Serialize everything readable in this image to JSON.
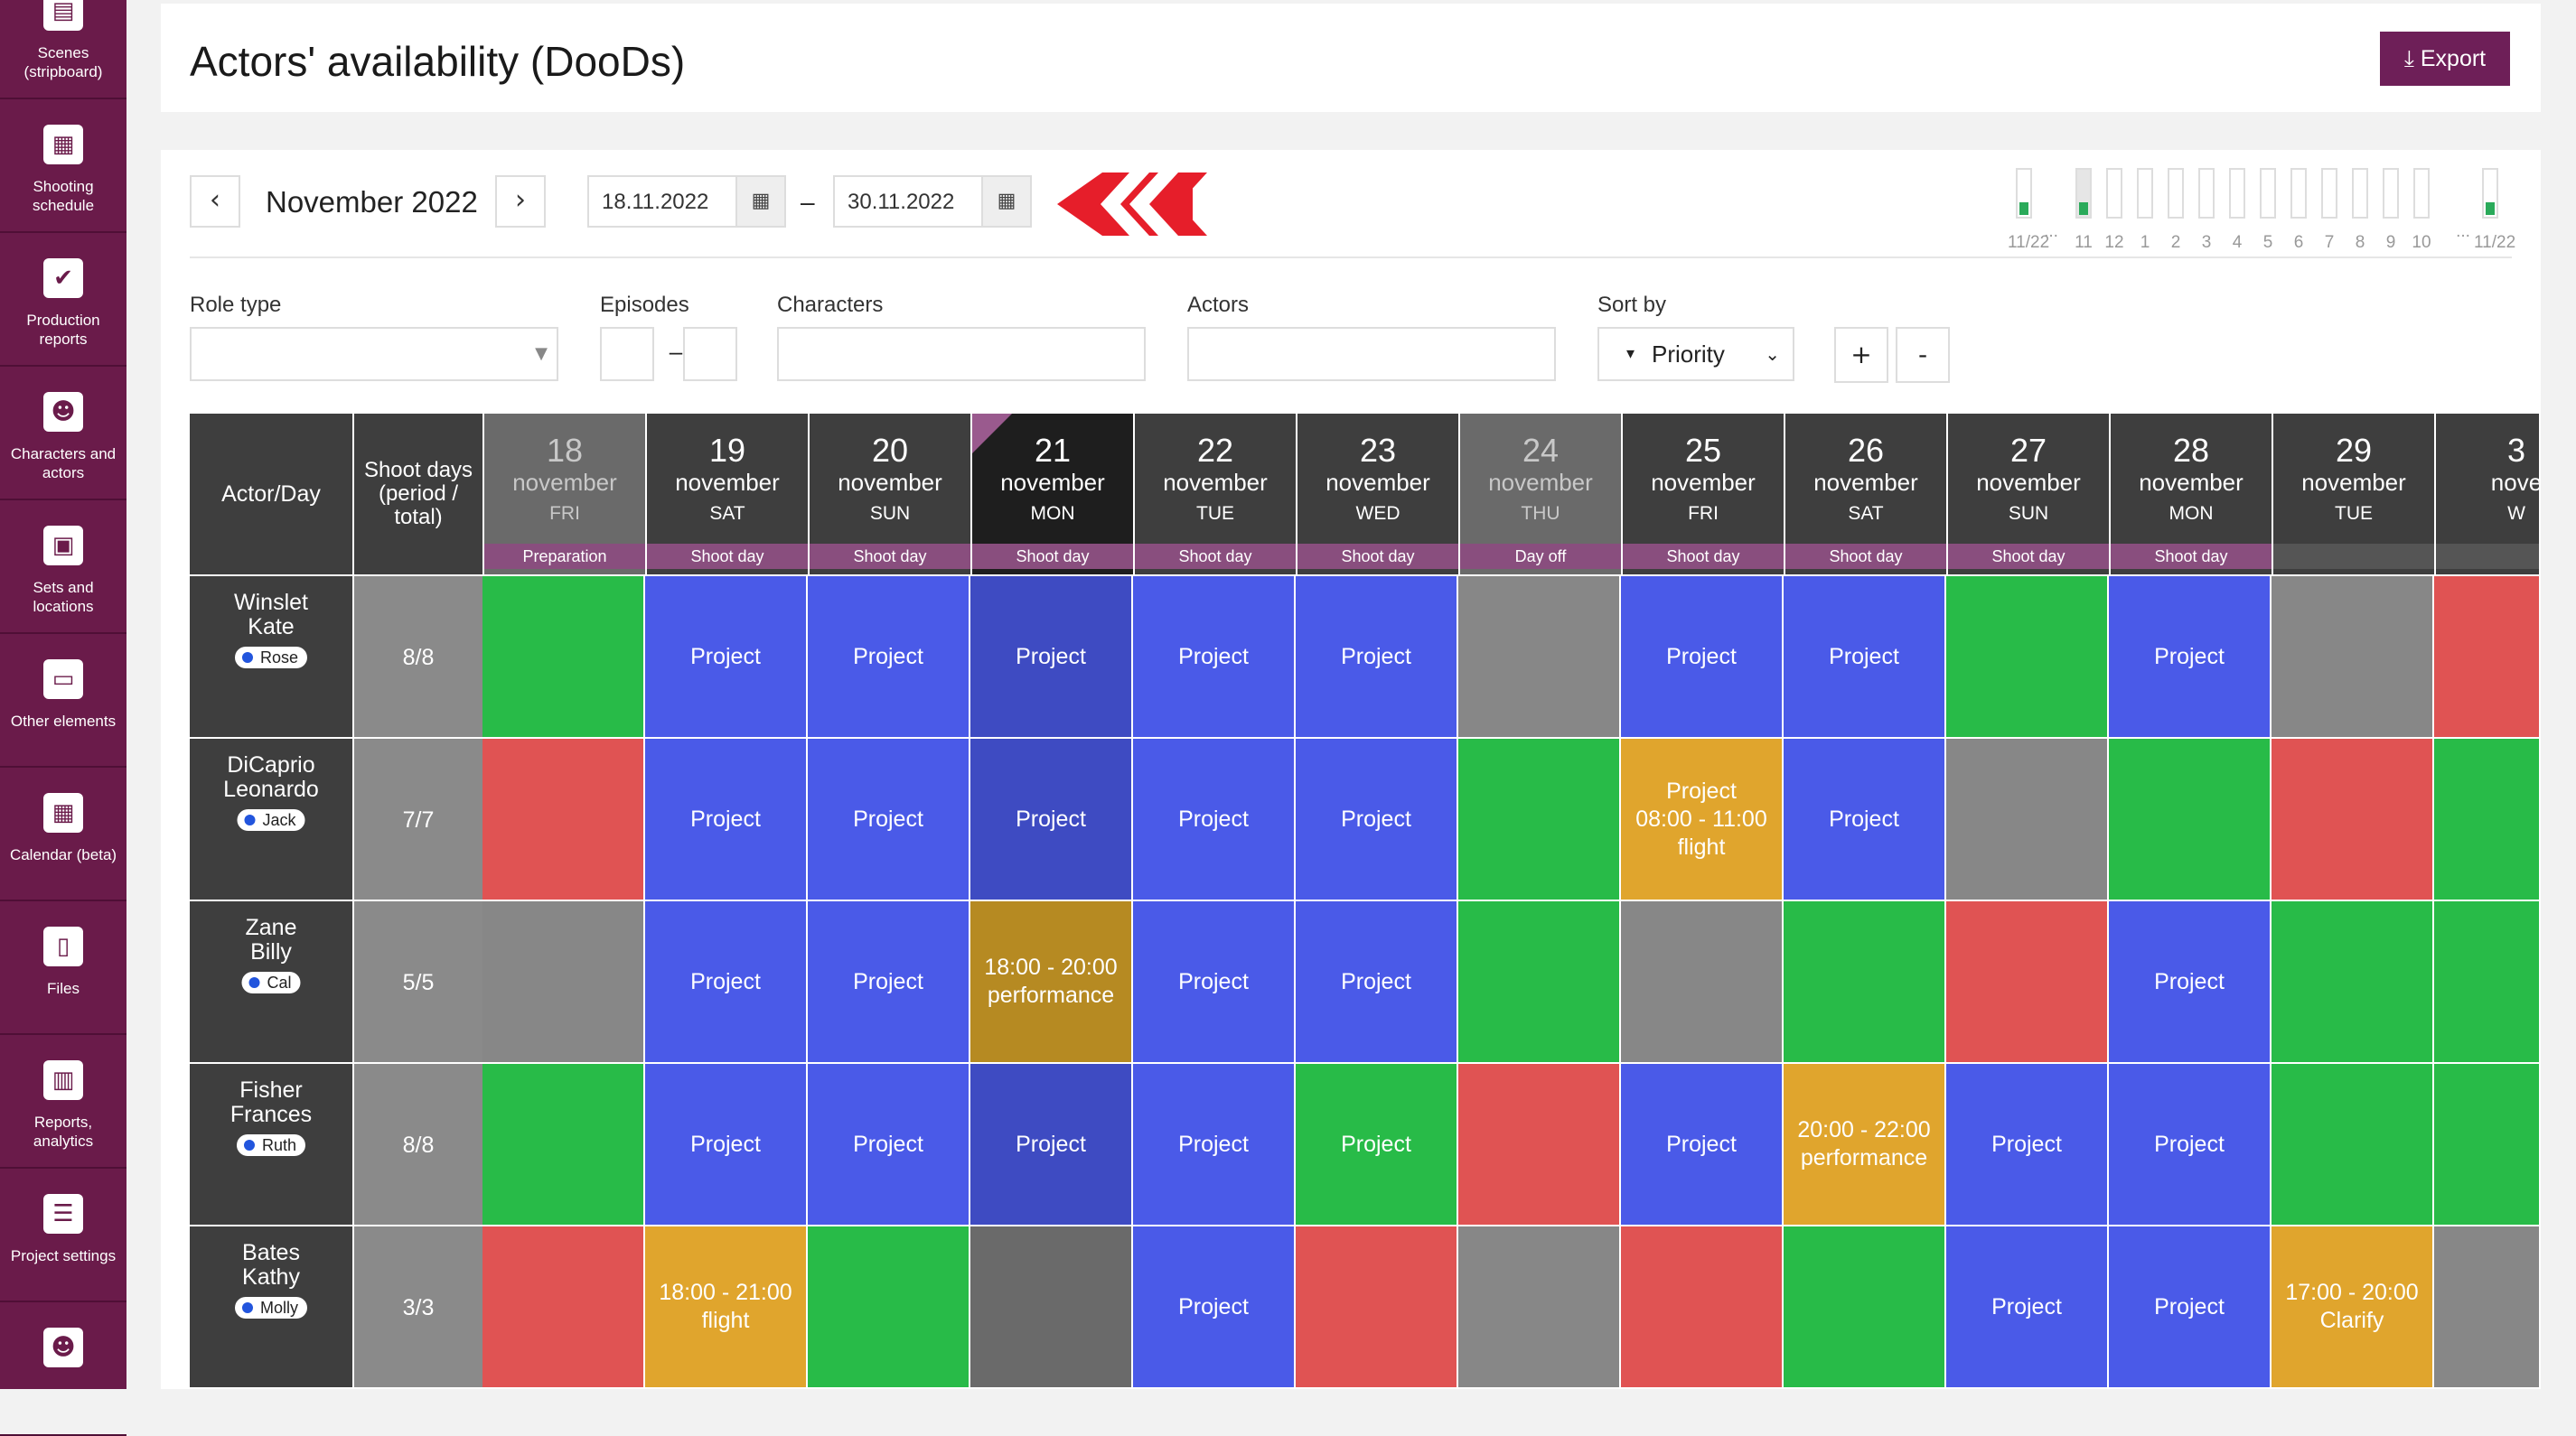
{
  "sidebar": {
    "items": [
      {
        "label": "Scenes\n(stripboard)",
        "icon": "clapper-icon"
      },
      {
        "label": "Shooting schedule",
        "icon": "calendar-icon"
      },
      {
        "label": "Production reports",
        "icon": "check-icon"
      },
      {
        "label": "Characters and actors",
        "icon": "people-icon"
      },
      {
        "label": "Sets and locations",
        "icon": "image-icon"
      },
      {
        "label": "Other elements",
        "icon": "box-icon"
      },
      {
        "label": "Calendar (beta)",
        "icon": "calendar-icon"
      },
      {
        "label": "Files",
        "icon": "file-icon"
      },
      {
        "label": "Reports, analytics",
        "icon": "chart-icon"
      },
      {
        "label": "Project settings",
        "icon": "sliders-icon"
      },
      {
        "label": "",
        "icon": "people-icon"
      }
    ]
  },
  "header": {
    "title": "Actors' availability (DooDs)",
    "export_label": "Export"
  },
  "toolbar": {
    "prev": "‹",
    "next": "›",
    "month": "November 2022",
    "date_from": "18.11.2022",
    "date_to": "30.11.2022",
    "dash": "–"
  },
  "mini_calendar": {
    "labels": [
      "11/22",
      "11",
      "12",
      "1",
      "2",
      "3",
      "4",
      "5",
      "6",
      "7",
      "8",
      "9",
      "10",
      "11/22"
    ],
    "ellipsis": "...",
    "filled": [
      true,
      true,
      false,
      false,
      false,
      false,
      false,
      false,
      false,
      false,
      false,
      false,
      false,
      true
    ],
    "selected_index": 1
  },
  "filters": {
    "role_type": "Role type",
    "episodes": "Episodes",
    "characters": "Characters",
    "actors": "Actors",
    "sort_by": "Sort by",
    "sort_value": "Priority",
    "episodes_dash": "–",
    "plus": "+",
    "minus": "-"
  },
  "colors": {
    "project": "#4a5ae8",
    "project_dark": "#3e4bc2",
    "green": "#28bb48",
    "red": "#e05353",
    "gray": "#878787",
    "orange": "#e0a52d",
    "orange_dark": "#b68a22",
    "accent": "#6e1f58"
  },
  "grid": {
    "actor_day_label": "Actor/Day",
    "shoot_days_label": "Shoot days\n(period /\ntotal)",
    "days": [
      {
        "num": "18",
        "month": "november",
        "weekday": "FRI",
        "type": "Preparation",
        "state": "gray"
      },
      {
        "num": "19",
        "month": "november",
        "weekday": "SAT",
        "type": "Shoot day",
        "state": "normal"
      },
      {
        "num": "20",
        "month": "november",
        "weekday": "SUN",
        "type": "Shoot day",
        "state": "normal"
      },
      {
        "num": "21",
        "month": "november",
        "weekday": "MON",
        "type": "Shoot day",
        "state": "today"
      },
      {
        "num": "22",
        "month": "november",
        "weekday": "TUE",
        "type": "Shoot day",
        "state": "normal"
      },
      {
        "num": "23",
        "month": "november",
        "weekday": "WED",
        "type": "Shoot day",
        "state": "normal"
      },
      {
        "num": "24",
        "month": "november",
        "weekday": "THU",
        "type": "Day off",
        "state": "gray"
      },
      {
        "num": "25",
        "month": "november",
        "weekday": "FRI",
        "type": "Shoot day",
        "state": "normal"
      },
      {
        "num": "26",
        "month": "november",
        "weekday": "SAT",
        "type": "Shoot day",
        "state": "normal"
      },
      {
        "num": "27",
        "month": "november",
        "weekday": "SUN",
        "type": "Shoot day",
        "state": "normal"
      },
      {
        "num": "28",
        "month": "november",
        "weekday": "MON",
        "type": "Shoot day",
        "state": "normal"
      },
      {
        "num": "29",
        "month": "november",
        "weekday": "TUE",
        "type": "",
        "state": "normal"
      },
      {
        "num": "3",
        "month": "nove",
        "weekday": "W",
        "type": "",
        "state": "normal"
      }
    ],
    "actors": [
      {
        "name": "Winslet\nKate",
        "role": "Rose",
        "shoot_days": "8/8",
        "cells": [
          [
            "green",
            ""
          ],
          [
            "project",
            "Project"
          ],
          [
            "project",
            "Project"
          ],
          [
            "project_dark",
            "Project"
          ],
          [
            "project",
            "Project"
          ],
          [
            "project",
            "Project"
          ],
          [
            "gray",
            ""
          ],
          [
            "project",
            "Project"
          ],
          [
            "project",
            "Project"
          ],
          [
            "green",
            ""
          ],
          [
            "project",
            "Project"
          ],
          [
            "gray",
            ""
          ],
          [
            "red",
            ""
          ]
        ]
      },
      {
        "name": "DiCaprio\nLeonardo",
        "role": "Jack",
        "shoot_days": "7/7",
        "cells": [
          [
            "red",
            ""
          ],
          [
            "project",
            "Project"
          ],
          [
            "project",
            "Project"
          ],
          [
            "project_dark",
            "Project"
          ],
          [
            "project",
            "Project"
          ],
          [
            "project",
            "Project"
          ],
          [
            "green",
            ""
          ],
          [
            "orange",
            "Project\n08:00 - 11:00\nflight"
          ],
          [
            "project",
            "Project"
          ],
          [
            "gray",
            ""
          ],
          [
            "green",
            ""
          ],
          [
            "red",
            ""
          ],
          [
            "green",
            ""
          ]
        ]
      },
      {
        "name": "Zane\nBilly",
        "role": "Cal",
        "shoot_days": "5/5",
        "cells": [
          [
            "gray",
            ""
          ],
          [
            "project",
            "Project"
          ],
          [
            "project",
            "Project"
          ],
          [
            "orange_dark",
            "18:00 - 20:00\nperformance"
          ],
          [
            "project",
            "Project"
          ],
          [
            "project",
            "Project"
          ],
          [
            "green",
            ""
          ],
          [
            "gray",
            ""
          ],
          [
            "green",
            ""
          ],
          [
            "red",
            ""
          ],
          [
            "project",
            "Project"
          ],
          [
            "green",
            ""
          ],
          [
            "green",
            ""
          ]
        ]
      },
      {
        "name": "Fisher\nFrances",
        "role": "Ruth",
        "shoot_days": "8/8",
        "cells": [
          [
            "green",
            ""
          ],
          [
            "project",
            "Project"
          ],
          [
            "project",
            "Project"
          ],
          [
            "project_dark",
            "Project"
          ],
          [
            "project",
            "Project"
          ],
          [
            "green",
            "Project"
          ],
          [
            "red",
            ""
          ],
          [
            "project",
            "Project"
          ],
          [
            "orange",
            "20:00 - 22:00\nperformance"
          ],
          [
            "project",
            "Project"
          ],
          [
            "project",
            "Project"
          ],
          [
            "green",
            ""
          ],
          [
            "green",
            ""
          ]
        ]
      },
      {
        "name": "Bates\nKathy",
        "role": "Molly",
        "shoot_days": "3/3",
        "cells": [
          [
            "red",
            ""
          ],
          [
            "orange",
            "18:00 - 21:00\nflight"
          ],
          [
            "green",
            ""
          ],
          [
            "gray_dark",
            ""
          ],
          [
            "project",
            "Project"
          ],
          [
            "red",
            ""
          ],
          [
            "gray",
            ""
          ],
          [
            "red",
            ""
          ],
          [
            "green",
            ""
          ],
          [
            "project",
            "Project"
          ],
          [
            "project",
            "Project"
          ],
          [
            "orange",
            "17:00 - 20:00\nClarify"
          ],
          [
            "gray",
            ""
          ]
        ]
      }
    ]
  }
}
